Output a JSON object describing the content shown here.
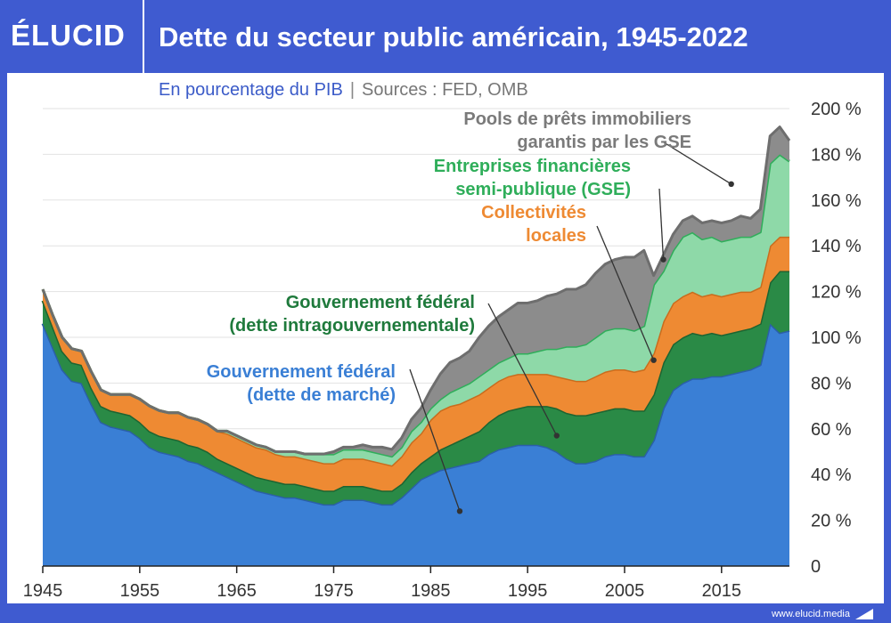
{
  "header": {
    "logo": "ÉLUCID",
    "title": "Dette du secteur public américain, 1945-2022"
  },
  "subtitle": {
    "main": "En pourcentage du PIB",
    "separator": "|",
    "sources": "Sources : FED, OMB"
  },
  "footer": {
    "url": "www.elucid.media"
  },
  "chart_data": {
    "type": "area",
    "stacked": true,
    "xlim": [
      1945,
      2022
    ],
    "ylim": [
      0,
      200
    ],
    "x_ticks": [
      "1945",
      "1955",
      "1965",
      "1975",
      "1985",
      "1995",
      "2005",
      "2015"
    ],
    "y_ticks": [
      "0",
      "20 %",
      "40 %",
      "60 %",
      "80 %",
      "100 %",
      "120 %",
      "140 %",
      "160 %",
      "180 %",
      "200 %"
    ],
    "y_axis_position": "right",
    "grid": true,
    "x": [
      1945,
      1946,
      1947,
      1948,
      1949,
      1950,
      1951,
      1952,
      1953,
      1954,
      1955,
      1956,
      1957,
      1958,
      1959,
      1960,
      1961,
      1962,
      1963,
      1964,
      1965,
      1966,
      1967,
      1968,
      1969,
      1970,
      1971,
      1972,
      1973,
      1974,
      1975,
      1976,
      1977,
      1978,
      1979,
      1980,
      1981,
      1982,
      1983,
      1984,
      1985,
      1986,
      1987,
      1988,
      1989,
      1990,
      1991,
      1992,
      1993,
      1994,
      1995,
      1996,
      1997,
      1998,
      1999,
      2000,
      2001,
      2002,
      2003,
      2004,
      2005,
      2006,
      2007,
      2008,
      2009,
      2010,
      2011,
      2012,
      2013,
      2014,
      2015,
      2016,
      2017,
      2018,
      2019,
      2020,
      2021,
      2022
    ],
    "series": [
      {
        "name": "Gouvernement fédéral (dette de marché)",
        "color": "#3a7fd5",
        "values": [
          106,
          96,
          86,
          81,
          80,
          71,
          63,
          61,
          60,
          59,
          56,
          52,
          50,
          49,
          48,
          46,
          45,
          43,
          41,
          39,
          37,
          35,
          33,
          32,
          31,
          30,
          30,
          29,
          28,
          27,
          27,
          29,
          29,
          29,
          28,
          27,
          27,
          30,
          34,
          38,
          40,
          42,
          43,
          44,
          45,
          46,
          49,
          51,
          52,
          53,
          53,
          53,
          52,
          50,
          47,
          45,
          45,
          46,
          48,
          49,
          49,
          48,
          48,
          55,
          69,
          77,
          80,
          82,
          82,
          83,
          83,
          84,
          85,
          86,
          88,
          106,
          102,
          103
        ]
      },
      {
        "name": "Gouvernement fédéral (dette intragouvernementale)",
        "color": "#2a8a46",
        "values": [
          10,
          9,
          8,
          8,
          8,
          7,
          7,
          7,
          7,
          7,
          7,
          7,
          7,
          7,
          7,
          7,
          7,
          7,
          6,
          6,
          6,
          6,
          6,
          6,
          6,
          6,
          6,
          6,
          6,
          6,
          6,
          6,
          6,
          6,
          6,
          6,
          6,
          6,
          7,
          7,
          8,
          9,
          10,
          11,
          12,
          13,
          14,
          15,
          16,
          16,
          17,
          17,
          18,
          19,
          20,
          21,
          21,
          21,
          20,
          20,
          20,
          20,
          20,
          20,
          20,
          20,
          20,
          20,
          19,
          19,
          18,
          18,
          18,
          18,
          18,
          18,
          27,
          26
        ]
      },
      {
        "name": "Collectivités locales",
        "color": "#ee8a33",
        "values": [
          5,
          5,
          6,
          6,
          6,
          7,
          7,
          7,
          8,
          9,
          10,
          11,
          11,
          11,
          12,
          12,
          12,
          12,
          12,
          13,
          13,
          13,
          13,
          13,
          12,
          12,
          12,
          12,
          12,
          12,
          12,
          12,
          12,
          12,
          12,
          12,
          11,
          12,
          13,
          13,
          16,
          17,
          17,
          16,
          16,
          16,
          15,
          15,
          15,
          15,
          14,
          14,
          14,
          14,
          15,
          15,
          15,
          16,
          17,
          17,
          17,
          17,
          18,
          18,
          18,
          18,
          18,
          18,
          17,
          17,
          17,
          17,
          17,
          16,
          16,
          16,
          15,
          15
        ]
      },
      {
        "name": "Entreprises financières semi-publique (GSE)",
        "color": "#8ed9a8",
        "values": [
          0,
          0,
          0,
          0,
          0,
          0,
          0,
          0,
          0,
          0,
          0,
          0,
          0,
          0,
          0,
          0,
          0,
          0,
          0,
          1,
          1,
          1,
          1,
          1,
          1,
          2,
          2,
          2,
          3,
          4,
          4,
          4,
          4,
          4,
          4,
          4,
          4,
          4,
          5,
          5,
          5,
          5,
          6,
          7,
          7,
          8,
          8,
          8,
          8,
          9,
          9,
          10,
          11,
          12,
          14,
          15,
          16,
          17,
          18,
          18,
          18,
          18,
          19,
          30,
          22,
          23,
          26,
          26,
          25,
          25,
          24,
          24,
          24,
          24,
          24,
          36,
          36,
          33
        ]
      },
      {
        "name": "Pools de prêts immobiliers garantis par les GSE",
        "color": "#8c8c8c",
        "values": [
          0,
          0,
          0,
          0,
          0,
          0,
          0,
          0,
          0,
          0,
          0,
          0,
          0,
          0,
          0,
          0,
          0,
          0,
          0,
          0,
          0,
          0,
          0,
          0,
          0,
          0,
          0,
          0,
          0,
          0,
          1,
          1,
          1,
          2,
          2,
          3,
          3,
          4,
          5,
          6,
          8,
          11,
          13,
          13,
          14,
          17,
          19,
          20,
          21,
          22,
          22,
          22,
          23,
          24,
          25,
          25,
          26,
          28,
          29,
          30,
          31,
          32,
          33,
          4,
          7,
          7,
          7,
          7,
          7,
          7,
          8,
          8,
          9,
          8,
          10,
          12,
          12,
          9
        ]
      }
    ],
    "annotations": [
      {
        "text": "Pools de prêts immobiliers\ngarantis par les GSE",
        "color": "#7a7a7a",
        "x": 2016,
        "y": 167
      },
      {
        "text": "Entreprises financières\nsemi-publique (GSE)",
        "color": "#2fae5a",
        "x": 2009,
        "y": 134
      },
      {
        "text": "Collectivités\nlocales",
        "color": "#ee8a33",
        "x": 2008,
        "y": 90
      },
      {
        "text": "Gouvernement fédéral\n(dette intragouvernementale)",
        "color": "#1f7a3c",
        "x": 1998,
        "y": 57
      },
      {
        "text": "Gouvernement fédéral\n(dette de marché)",
        "color": "#3a7fd5",
        "x": 1988,
        "y": 24
      }
    ]
  }
}
